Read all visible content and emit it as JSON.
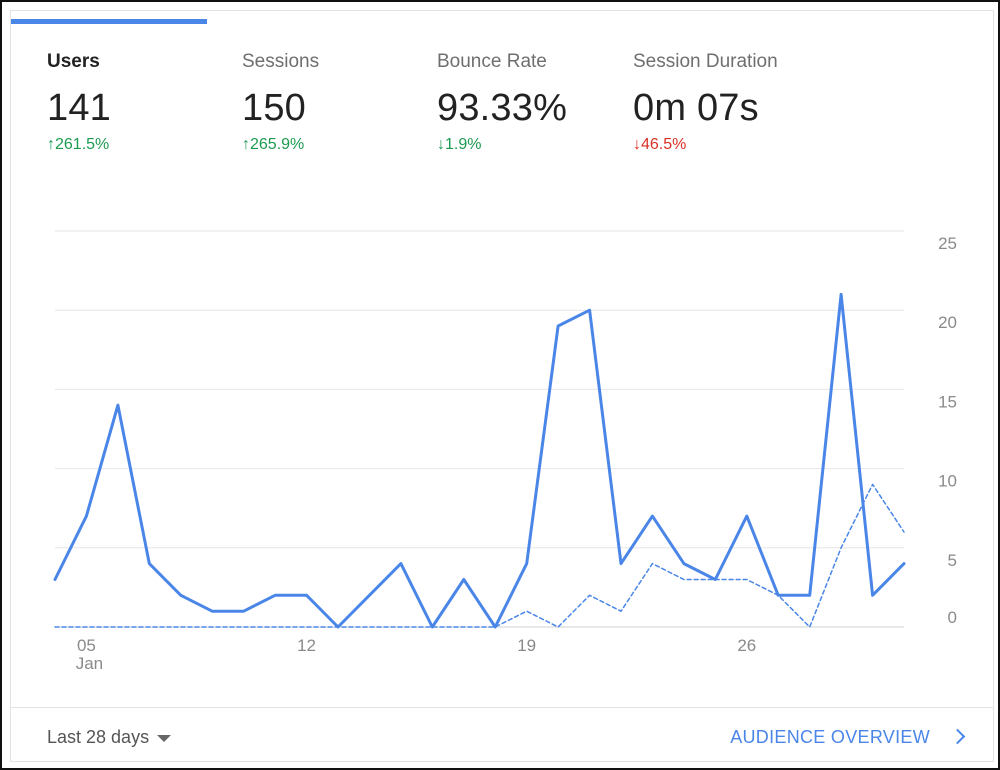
{
  "metrics": [
    {
      "label": "Users",
      "value": "141",
      "change": "↑261.5%",
      "trend": "up"
    },
    {
      "label": "Sessions",
      "value": "150",
      "change": "↑265.9%",
      "trend": "up"
    },
    {
      "label": "Bounce Rate",
      "value": "93.33%",
      "change": "↓1.9%",
      "trend": "down-good"
    },
    {
      "label": "Session Duration",
      "value": "0m 07s",
      "change": "↓46.5%",
      "trend": "down-bad"
    }
  ],
  "footer": {
    "range_label": "Last 28 days",
    "link_label": "AUDIENCE OVERVIEW"
  },
  "colors": {
    "accent": "#4a86e8",
    "positive": "#1c9b50",
    "negative": "#d93025",
    "grid": "#e6e6e6"
  },
  "chart_data": {
    "type": "line",
    "x": [
      "2019-01-04",
      "2019-01-05",
      "2019-01-06",
      "2019-01-07",
      "2019-01-08",
      "2019-01-09",
      "2019-01-10",
      "2019-01-11",
      "2019-01-12",
      "2019-01-13",
      "2019-01-14",
      "2019-01-15",
      "2019-01-16",
      "2019-01-17",
      "2019-01-18",
      "2019-01-19",
      "2019-01-20",
      "2019-01-21",
      "2019-01-22",
      "2019-01-23",
      "2019-01-24",
      "2019-01-25",
      "2019-01-26",
      "2019-01-27",
      "2019-01-28",
      "2019-01-29",
      "2019-01-30",
      "2019-01-31"
    ],
    "series": [
      {
        "style": "solid",
        "values": [
          3,
          7,
          14,
          4,
          2,
          1,
          1,
          2,
          2,
          0,
          2,
          4,
          0,
          3,
          0,
          4,
          19,
          20,
          4,
          7,
          4,
          3,
          7,
          2,
          2,
          21,
          2,
          4
        ]
      },
      {
        "style": "dashed",
        "values": [
          0,
          0,
          0,
          0,
          0,
          0,
          0,
          0,
          0,
          0,
          0,
          0,
          0,
          0,
          0,
          1,
          0,
          2,
          1,
          4,
          3,
          3,
          3,
          2,
          0,
          5,
          9,
          6
        ]
      }
    ],
    "xticks": [
      {
        "label": "05",
        "sublabel": "Jan",
        "index": 1
      },
      {
        "label": "12",
        "index": 8
      },
      {
        "label": "19",
        "index": 15
      },
      {
        "label": "26",
        "index": 22
      }
    ],
    "yticks": [
      "0",
      "5",
      "10",
      "15",
      "20",
      "25"
    ],
    "ylim": [
      0,
      25
    ],
    "y_axis_side": "right",
    "grid": true
  }
}
